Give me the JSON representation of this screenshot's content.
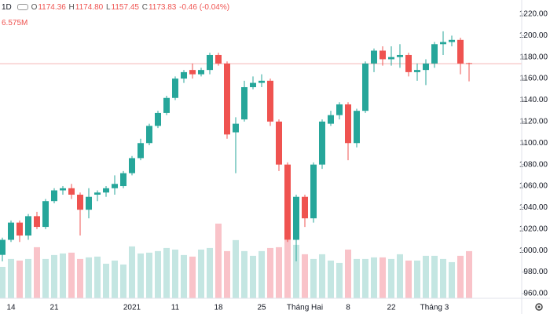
{
  "header": {
    "interval": "1D",
    "open_label": "O",
    "open": "1174.36",
    "high_label": "H",
    "high": "1174.80",
    "low_label": "L",
    "low": "1157.45",
    "close_label": "C",
    "close": "1173.83",
    "change": "-0.46 (-0.04%)",
    "volume": "6.575M"
  },
  "chart_data": {
    "type": "candlestick",
    "categories": [
      null,
      "14",
      null,
      null,
      null,
      null,
      "21",
      null,
      null,
      null,
      null,
      null,
      null,
      null,
      null,
      "2021",
      null,
      null,
      null,
      null,
      "11",
      null,
      null,
      null,
      null,
      "18",
      null,
      null,
      null,
      null,
      "25",
      null,
      null,
      null,
      null,
      "Tháng Hai",
      null,
      null,
      null,
      null,
      "8",
      null,
      null,
      null,
      null,
      "22",
      null,
      null,
      null,
      null,
      "Tháng 3",
      null,
      null,
      null,
      null
    ],
    "open": [
      996,
      1010,
      1026,
      1014,
      1032,
      1022,
      1046,
      1056,
      1058,
      1052,
      1038,
      1052,
      1054,
      1058,
      1060,
      1072,
      1086,
      1100,
      1116,
      1128,
      1142,
      1160,
      1168,
      1164,
      1168,
      1182,
      1174,
      1110,
      1122,
      1152,
      1156,
      1158,
      1120,
      1080,
      1010,
      1050,
      1030,
      1080,
      1118,
      1126,
      1136,
      1100,
      1130,
      1174,
      1186,
      1178,
      1180,
      1182,
      1166,
      1168,
      1174,
      1192,
      1194,
      1196,
      1174.36
    ],
    "high": [
      1012,
      1028,
      1028,
      1034,
      1036,
      1048,
      1058,
      1060,
      1062,
      1054,
      1058,
      1056,
      1060,
      1070,
      1074,
      1088,
      1104,
      1118,
      1130,
      1144,
      1162,
      1168,
      1174,
      1170,
      1184,
      1184,
      1176,
      1124,
      1158,
      1162,
      1164,
      1160,
      1122,
      1082,
      1052,
      1052,
      1082,
      1122,
      1130,
      1138,
      1138,
      1132,
      1176,
      1188,
      1190,
      1190,
      1192,
      1184,
      1174,
      1178,
      1194,
      1204,
      1200,
      1198,
      1174.8
    ],
    "low": [
      990,
      1008,
      1008,
      1010,
      1020,
      1020,
      1044,
      1052,
      1048,
      1014,
      1030,
      1046,
      1050,
      1052,
      1058,
      1070,
      1084,
      1098,
      1114,
      1126,
      1140,
      1156,
      1160,
      1162,
      1164,
      1172,
      1104,
      1072,
      1120,
      1150,
      1152,
      1116,
      1074,
      1008,
      990,
      1022,
      1026,
      1076,
      1116,
      1122,
      1084,
      1096,
      1128,
      1166,
      1172,
      1172,
      1170,
      1162,
      1158,
      1154,
      1170,
      1182,
      1190,
      1164,
      1157.45
    ],
    "close": [
      1010,
      1026,
      1014,
      1032,
      1022,
      1046,
      1056,
      1058,
      1052,
      1038,
      1050,
      1054,
      1058,
      1062,
      1072,
      1086,
      1100,
      1116,
      1128,
      1142,
      1160,
      1166,
      1164,
      1168,
      1182,
      1174,
      1108,
      1118,
      1152,
      1156,
      1158,
      1120,
      1080,
      1010,
      1050,
      1030,
      1080,
      1120,
      1126,
      1136,
      1100,
      1130,
      1174,
      1186,
      1178,
      1180,
      1182,
      1166,
      1168,
      1174,
      1192,
      1194,
      1196,
      1174,
      1173.83
    ],
    "volume": [
      4.38,
      5.48,
      5.26,
      5.48,
      7.12,
      5.48,
      6.03,
      6.25,
      6.36,
      5.48,
      5.7,
      5.81,
      4.82,
      5.26,
      4.71,
      7.23,
      6.25,
      6.36,
      6.58,
      7.01,
      6.79,
      6.03,
      5.81,
      6.79,
      7.01,
      10.41,
      6.58,
      8.11,
      6.58,
      5.92,
      6.58,
      7.01,
      7.12,
      8.11,
      7.45,
      6.14,
      5.48,
      6.14,
      5.26,
      4.93,
      6.79,
      5.48,
      5.48,
      5.7,
      5.7,
      5.48,
      6.14,
      5.26,
      5.26,
      5.92,
      5.92,
      5.48,
      5.04,
      5.92,
      6.575
    ],
    "ylim": [
      955.6,
      1233.1
    ],
    "yticks": [
      {
        "value": 960,
        "label": "960.00"
      },
      {
        "value": 980,
        "label": "980.00"
      },
      {
        "value": 1000,
        "label": "1000.00"
      },
      {
        "value": 1020,
        "label": "1020.00"
      },
      {
        "value": 1040,
        "label": "1040.00"
      },
      {
        "value": 1060,
        "label": "1060.00"
      },
      {
        "value": 1080,
        "label": "1080.00"
      },
      {
        "value": 1100,
        "label": "1100.00"
      },
      {
        "value": 1120,
        "label": "1120.00"
      },
      {
        "value": 1140,
        "label": "1140.00"
      },
      {
        "value": 1160,
        "label": "1160.00"
      },
      {
        "value": 1180,
        "label": "1180.00"
      },
      {
        "value": 1200,
        "label": "1200.00"
      },
      {
        "value": 1220,
        "label": "1220.00"
      }
    ],
    "volume_lim": [
      0,
      17.5
    ],
    "up_color": "#26a69a",
    "down_color": "#ef5350",
    "volume_up_color": "#c4e6e2",
    "volume_down_color": "#f9c3c9",
    "price_line_color": "#f5b5b5"
  }
}
